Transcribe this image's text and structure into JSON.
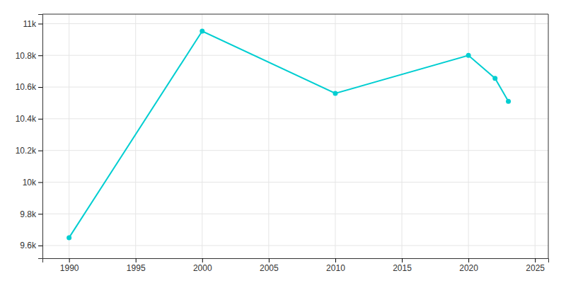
{
  "chart_data": {
    "type": "line",
    "x": [
      1990,
      2000,
      2010,
      2020,
      2022,
      2023
    ],
    "values": [
      9650,
      10953,
      10560,
      10800,
      10655,
      10510
    ],
    "color": "#00CED1",
    "marker": "circle",
    "xlim": [
      1988,
      2026
    ],
    "ylim": [
      9520,
      11060
    ],
    "xticks": [
      1990,
      1995,
      2000,
      2005,
      2010,
      2015,
      2020,
      2025
    ],
    "yticks": [
      {
        "value": 9600,
        "label": "9.6k"
      },
      {
        "value": 9800,
        "label": "9.8k"
      },
      {
        "value": 10000,
        "label": "10k"
      },
      {
        "value": 10200,
        "label": "10.2k"
      },
      {
        "value": 10400,
        "label": "10.4k"
      },
      {
        "value": 10600,
        "label": "10.6k"
      },
      {
        "value": 10800,
        "label": "10.8k"
      },
      {
        "value": 11000,
        "label": "11k"
      }
    ],
    "grid": true
  }
}
